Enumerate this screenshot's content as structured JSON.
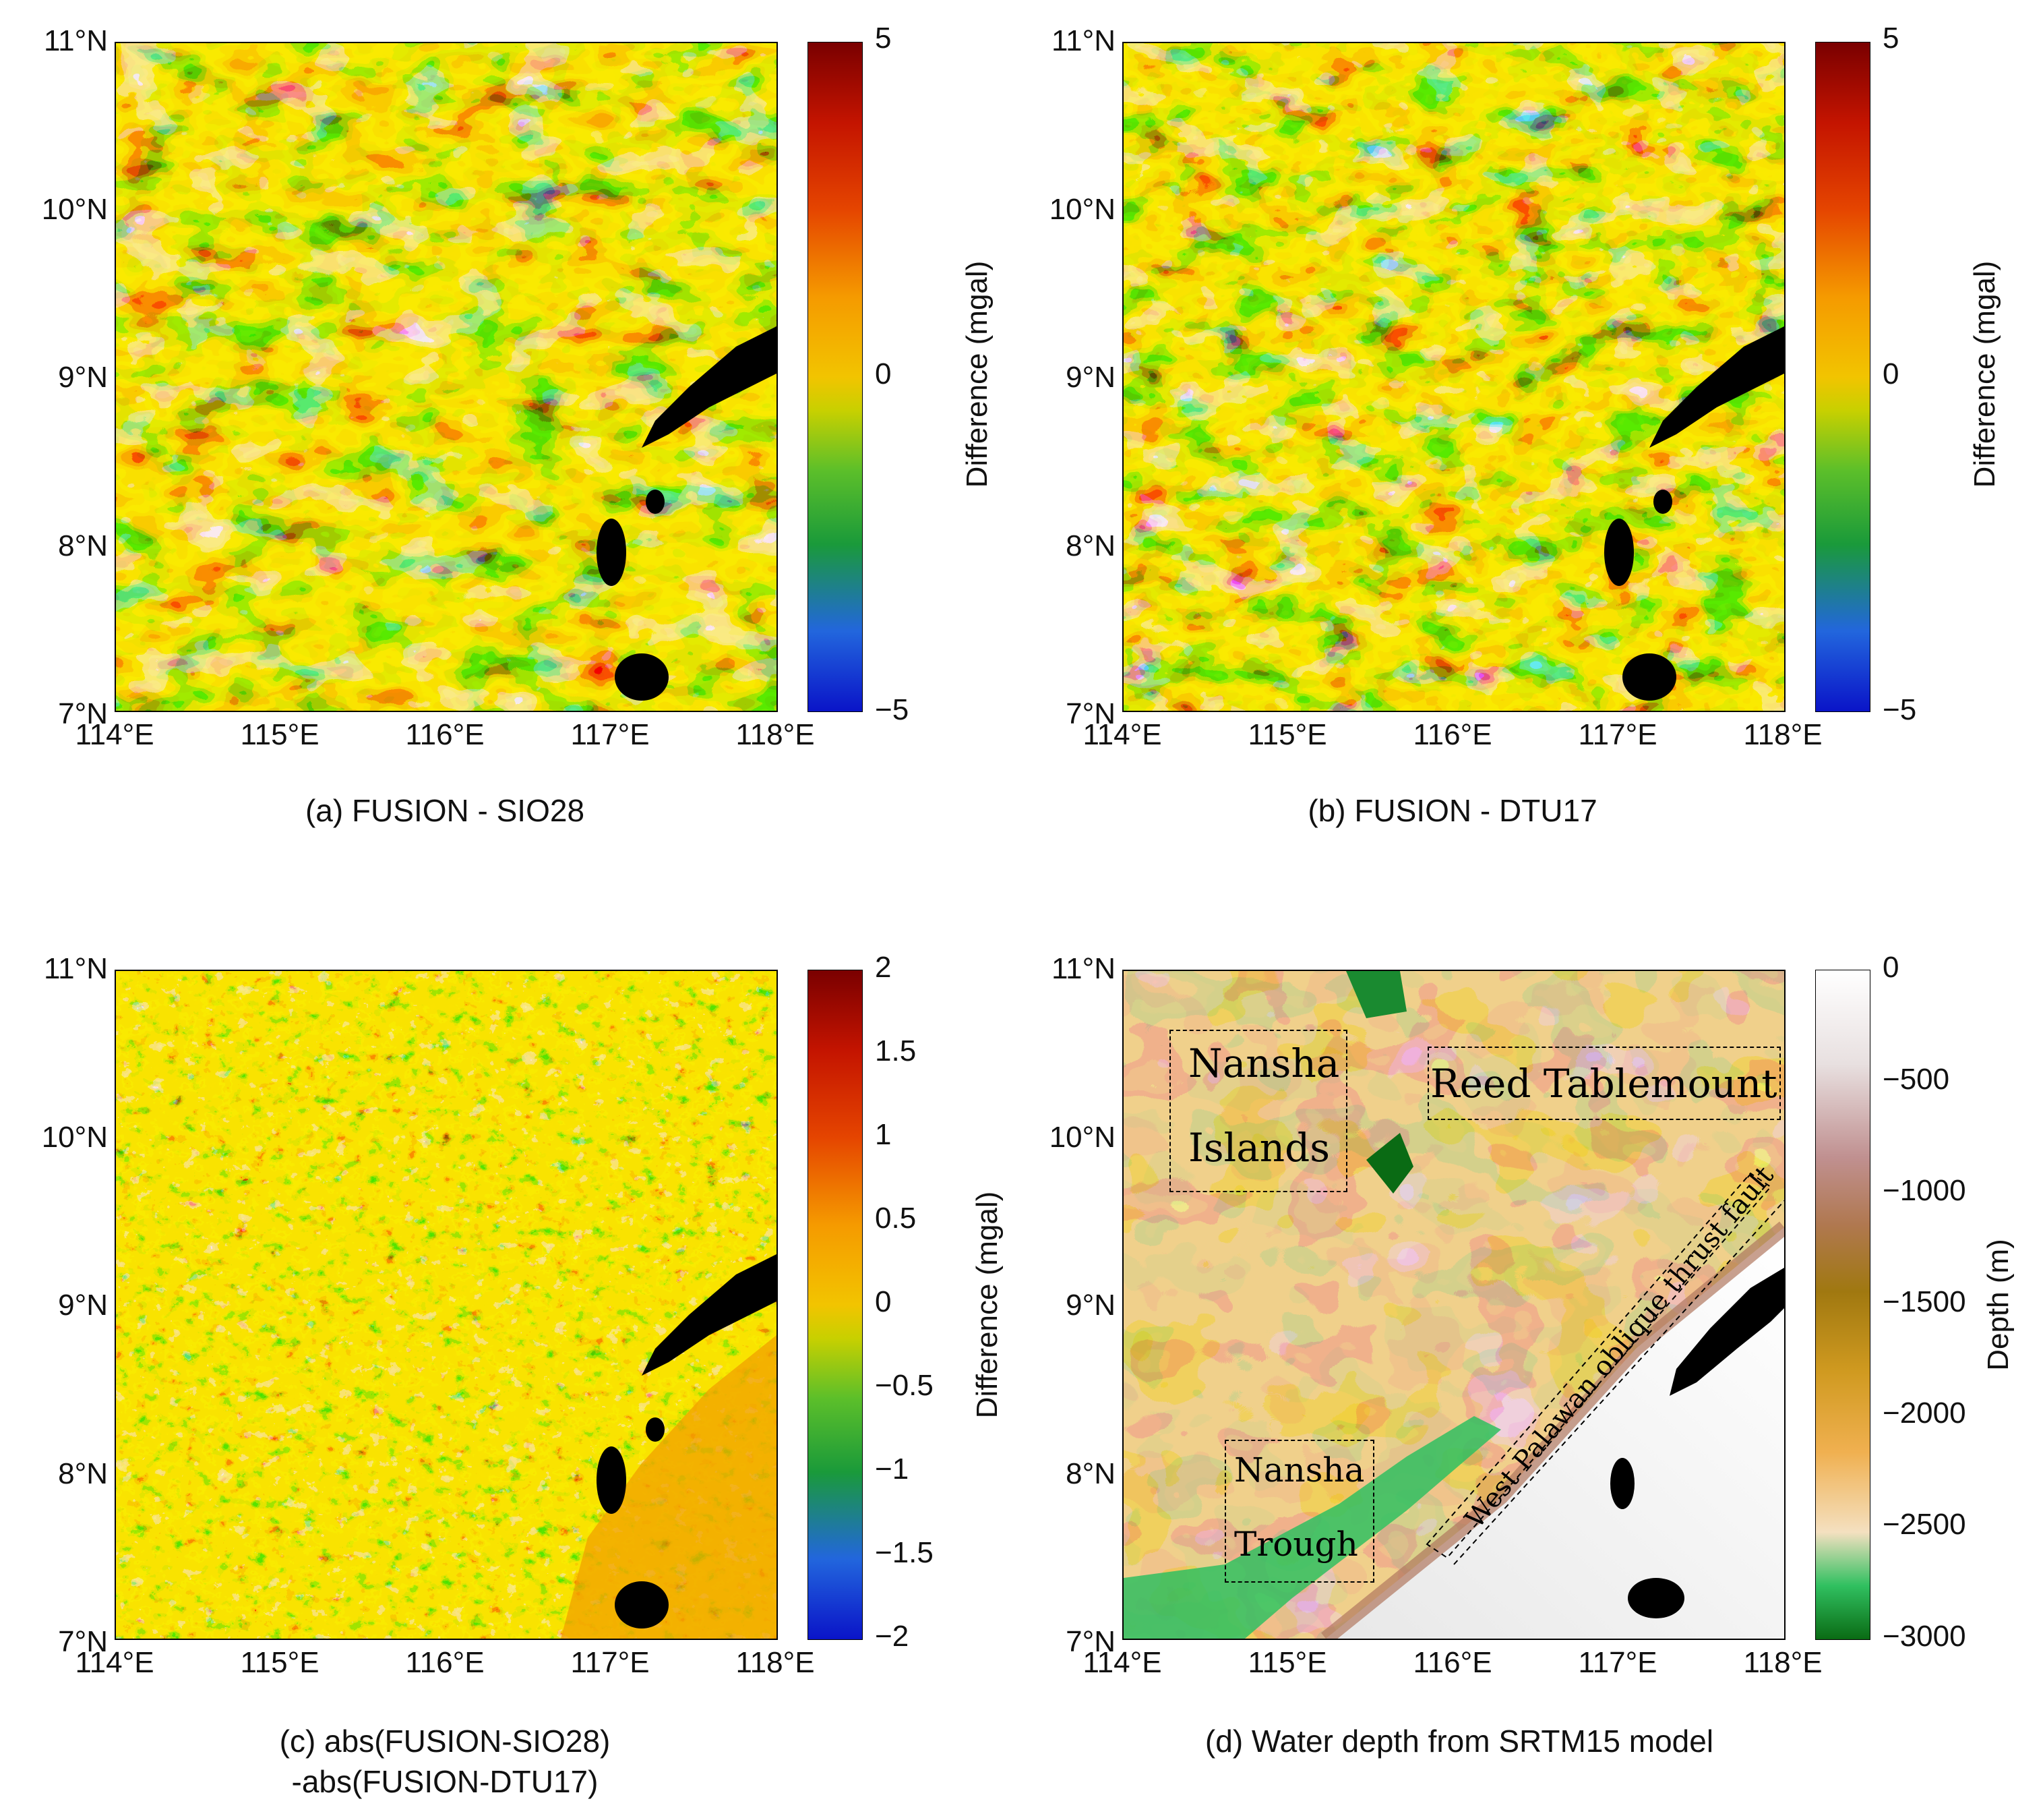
{
  "palette": {
    "diff": [
      "#0a14c8",
      "#2266dd",
      "#1a9a3a",
      "#5cbf2a",
      "#c8d000",
      "#f2c400",
      "#f59a00",
      "#e54500",
      "#c41400",
      "#7a0000"
    ],
    "depth": [
      "#0a6b14",
      "#30c060",
      "#f4e0c0",
      "#f0b050",
      "#d09a20",
      "#a07810",
      "#b07850",
      "#c09090",
      "#e8e0e0",
      "#ffffff"
    ],
    "land": "#000000"
  },
  "axes": {
    "lat_labels": [
      "11°N",
      "10°N",
      "9°N",
      "8°N",
      "7°N"
    ],
    "lon_labels": [
      "114°E",
      "115°E",
      "116°E",
      "117°E",
      "118°E"
    ]
  },
  "panels": [
    {
      "id": "a",
      "caption": "(a) FUSION - SIO28",
      "colorbar": {
        "label": "Difference (mgal)",
        "ticks": [
          "5",
          "0",
          "−5"
        ],
        "range": [
          -5,
          5
        ]
      }
    },
    {
      "id": "b",
      "caption": "(b) FUSION - DTU17",
      "colorbar": {
        "label": "Difference (mgal)",
        "ticks": [
          "5",
          "0",
          "−5"
        ],
        "range": [
          -5,
          5
        ]
      }
    },
    {
      "id": "c",
      "caption_line1": "(c) abs(FUSION-SIO28)",
      "caption_line2": "-abs(FUSION-DTU17)",
      "colorbar": {
        "label": "Difference (mgal)",
        "ticks": [
          "2",
          "1.5",
          "1",
          "0.5",
          "0",
          "−0.5",
          "−1",
          "−1.5",
          "−2"
        ],
        "range": [
          -2,
          2
        ]
      }
    },
    {
      "id": "d",
      "caption": "(d)  Water depth from SRTM15 model",
      "colorbar": {
        "label": "Depth (m)",
        "ticks": [
          "0",
          "−500",
          "−1000",
          "−1500",
          "−2000",
          "−2500",
          "−3000"
        ],
        "range": [
          -3000,
          0
        ]
      },
      "annotations": {
        "nansha_islands_1": "Nansha",
        "nansha_islands_2": "Islands",
        "reed": "Reed Tablemount",
        "nansha_trough_1": "Nansha",
        "nansha_trough_2": "Trough",
        "fault": "West Palawan oblique thrust fault"
      }
    }
  ]
}
